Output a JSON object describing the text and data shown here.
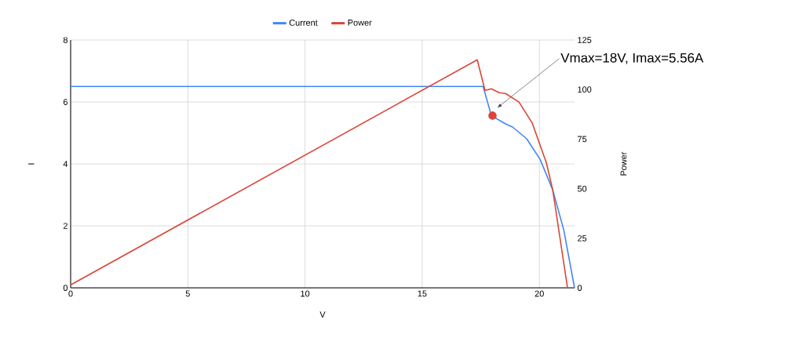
{
  "chart_data": {
    "type": "line",
    "xlabel": "V",
    "ylabel": "I",
    "y2label": "Power",
    "xlim": [
      0,
      21.5
    ],
    "xticks": [
      0,
      5,
      10,
      15,
      20
    ],
    "ylim": [
      0,
      8
    ],
    "yticks": [
      0,
      2,
      4,
      6,
      8
    ],
    "y2lim": [
      0,
      125
    ],
    "y2ticks": [
      0,
      25,
      50,
      75,
      100,
      125
    ],
    "grid": true,
    "legend": "top",
    "series": [
      {
        "name": "Current",
        "color": "#4285f4",
        "x": [
          0,
          17.6,
          17.95,
          18.56,
          18.86,
          19.46,
          20.03,
          20.57,
          21.04,
          21.5
        ],
        "values": [
          6.5,
          6.5,
          5.56,
          5.29,
          5.19,
          4.81,
          4.15,
          3.16,
          1.87,
          0
        ]
      },
      {
        "name": "Power",
        "color": "#db4437",
        "axis": "y2",
        "x": [
          0,
          17.35,
          17.68,
          17.95,
          18.29,
          18.56,
          19.13,
          19.7,
          20.3,
          20.57,
          21.2
        ],
        "values": [
          1.5,
          115,
          99.6,
          100.4,
          98.4,
          98,
          93.7,
          83,
          63,
          49.4,
          0
        ]
      },
      {
        "type": "scatter",
        "color": "#db4437",
        "marker": "circle",
        "x": [
          18
        ],
        "values": [
          5.56
        ]
      }
    ],
    "annotations": [
      "Vmax=18V, Imax=5.56A"
    ]
  }
}
